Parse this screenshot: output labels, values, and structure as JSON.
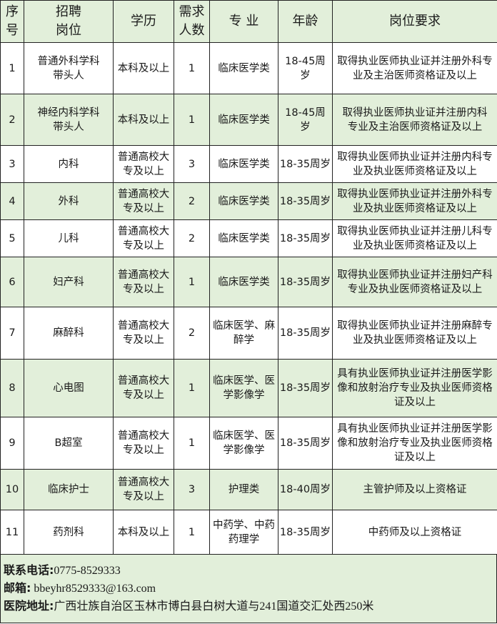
{
  "colors": {
    "header_bg": "#e2efda",
    "alt_row_bg": "#e2efda",
    "border": "#222222"
  },
  "headers": [
    "序\n号",
    "招聘\n岗位",
    "学历",
    "需求\n人数",
    "专  业",
    "年龄",
    "岗位要求"
  ],
  "rows": [
    [
      "1",
      "普通外科学科\n带头人",
      "本科及以上",
      "1",
      "临床医学类",
      "18-45周\n岁",
      "取得执业医师执业证并注册外科专\n业及主治医师资格证及以上"
    ],
    [
      "2",
      "神经内科学科\n带头人",
      "本科及以上",
      "1",
      "临床医学类",
      "18-45周\n岁",
      "取得执业医师执业证并注册内科\n专业及主治医师资格证及以上"
    ],
    [
      "3",
      "内科",
      "普通高校大\n专及以上",
      "3",
      "临床医学类",
      "18-35周岁",
      "取得执业医师执业证并注册内科专\n业及执业医师资格证及以上"
    ],
    [
      "4",
      "外科",
      "普通高校大\n专及以上",
      "2",
      "临床医学类",
      "18-35周岁",
      "取得执业医师执业证并注册外科专\n业及执业医师资格证及以上"
    ],
    [
      "5",
      "儿科",
      "普通高校大\n专及以上",
      "2",
      "临床医学类",
      "18-35周岁",
      "取得执业医师执业证并注册儿科专\n业及执业医师资格证及以上"
    ],
    [
      "6",
      "妇产科",
      "普通高校大\n专及以上",
      "1",
      "临床医学类",
      "18-35周岁",
      "取得执业医师执业证并注册妇产科\n专业及执业医师资格证及以上"
    ],
    [
      "7",
      "麻醉科",
      "普通高校大\n专及以上",
      "2",
      "临床医学、麻\n醉学",
      "18-35周岁",
      "取得执业医师执业证并注册麻醉专\n业及执业医师资格证及以上"
    ],
    [
      "8",
      "心电图",
      "普通高校大\n专及以上",
      "1",
      "临床医学、医\n学影像学",
      "18-35周岁",
      "具有执业医师执业证并注册医学影\n像和放射治疗专业及执业医师资格\n证及以上"
    ],
    [
      "9",
      "B超室",
      "普通高校大\n专及以上",
      "1",
      "临床医学、医\n学影像学",
      "18-35周岁",
      "具有执业医师执业证并注册医学影\n像和放射治疗专业及执业医师资格\n证及以上"
    ],
    [
      "10",
      "临床护士",
      "普通高校大\n专及以上",
      "3",
      "护理类",
      "18-40周岁",
      "主管护师及以上资格证"
    ],
    [
      "11",
      "药剂科",
      "本科及以上",
      "1",
      "中药学、中药\n药理学",
      "18-35周岁",
      "中药师及以上资格证"
    ]
  ],
  "footer": {
    "phone_label": "联系电话:",
    "phone": "0775-8529333",
    "email_label": "邮箱:",
    "email": " bbeyhr8529333@163.com",
    "address_label": "医院地址:",
    "address": "广西壮族自治区玉林市博白县白树大道与241国道交汇处西250米"
  }
}
